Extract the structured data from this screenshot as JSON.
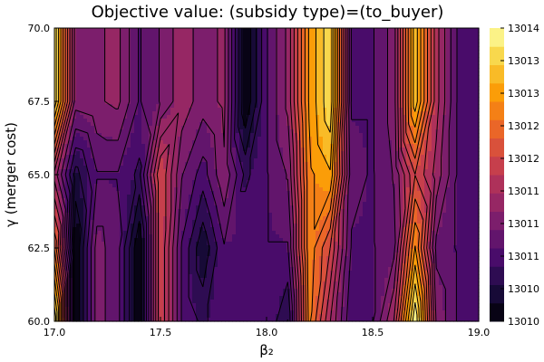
{
  "chart_data": {
    "type": "heatmap",
    "title": "Objective value: (subsidy type)=(to_buyer)",
    "xlabel": "β₂",
    "ylabel": "γ (merger cost)",
    "xlim": [
      17.0,
      19.0
    ],
    "ylim": [
      60.0,
      70.0
    ],
    "x": [
      17.0,
      17.1,
      17.2,
      17.3,
      17.4,
      17.5,
      17.6,
      17.7,
      17.8,
      17.9,
      18.0,
      18.1,
      18.2,
      18.3,
      18.4,
      18.5,
      18.6,
      18.7,
      18.8,
      18.9,
      19.0
    ],
    "y": [
      60.0,
      62.5,
      65.0,
      67.5,
      70.0
    ],
    "z": [
      [
        13014.0,
        13009.9,
        13011.3,
        13011.0,
        13009.9,
        13012.2,
        13010.9,
        13010.6,
        13010.9,
        13010.9,
        13010.9,
        13010.4,
        13012.8,
        13011.7,
        13010.7,
        13010.9,
        13011.7,
        13014.0,
        13011.4,
        13010.9,
        13010.9
      ],
      [
        13012.7,
        13009.9,
        13011.3,
        13011.0,
        13009.9,
        13012.2,
        13010.9,
        13010.2,
        13010.9,
        13010.9,
        13010.9,
        13010.9,
        13012.9,
        13012.2,
        13010.9,
        13010.9,
        13011.1,
        13013.0,
        13011.1,
        13010.9,
        13010.9
      ],
      [
        13011.6,
        13010.3,
        13010.9,
        13010.9,
        13010.6,
        13012.2,
        13011.2,
        13010.8,
        13011.4,
        13010.6,
        13010.9,
        13011.2,
        13012.9,
        13013.2,
        13011.0,
        13010.9,
        13011.2,
        13012.2,
        13011.6,
        13010.9,
        13010.9
      ],
      [
        13013.7,
        13011.3,
        13011.4,
        13011.5,
        13010.9,
        13011.2,
        13011.6,
        13011.3,
        13011.5,
        13009.9,
        13010.9,
        13011.5,
        13013.0,
        13013.7,
        13010.9,
        13010.9,
        13011.3,
        13013.4,
        13011.8,
        13010.9,
        13010.9
      ],
      [
        13013.7,
        13011.3,
        13011.4,
        13011.5,
        13010.9,
        13011.2,
        13011.6,
        13011.3,
        13011.5,
        13009.9,
        13010.9,
        13011.5,
        13013.0,
        13013.7,
        13010.9,
        13010.9,
        13011.3,
        13013.4,
        13011.8,
        13010.9,
        13010.9
      ]
    ],
    "xticks": [
      "17.0",
      "17.5",
      "18.0",
      "18.5",
      "19.0"
    ],
    "yticks": [
      "60.0",
      "62.5",
      "65.0",
      "67.5",
      "70.0"
    ],
    "colorbar": {
      "min": 13009.9,
      "max": 13014.0,
      "levels": 16,
      "tick_labels": [
        "13010",
        "13010",
        "13011",
        "13011",
        "13011",
        "13012",
        "13012",
        "13013",
        "13013",
        "13014"
      ]
    },
    "colormap": [
      "#000004",
      "#1b0c41",
      "#4a0c6b",
      "#781c6d",
      "#a52c60",
      "#cf4446",
      "#ed6925",
      "#fb9b06",
      "#f7d13d",
      "#fcffa4"
    ],
    "grid": false,
    "legend": "colorbar-right"
  }
}
